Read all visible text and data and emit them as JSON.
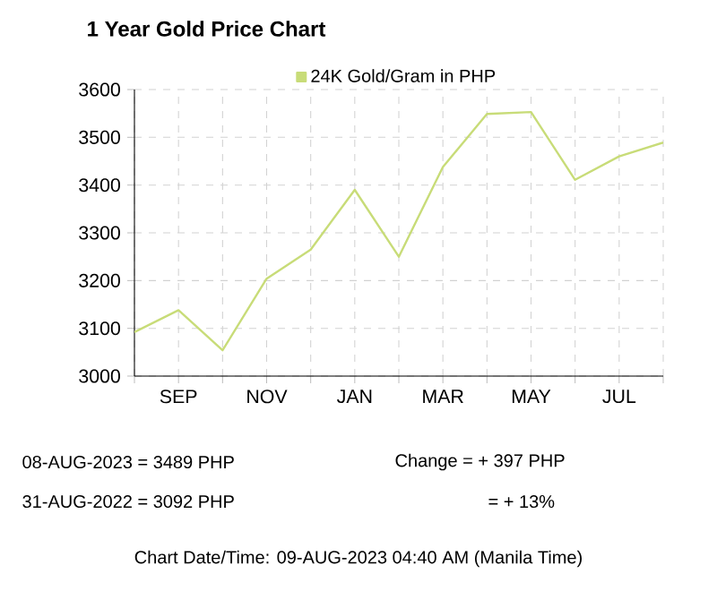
{
  "chart_data": {
    "type": "line",
    "title": "1 Year Gold Price Chart",
    "categories": [
      null,
      "SEP",
      null,
      "NOV",
      null,
      "JAN",
      null,
      "MAR",
      null,
      "MAY",
      null,
      "JUL",
      null
    ],
    "series": [
      {
        "name": "24K Gold/Gram  in PHP",
        "color": "#c8dc78",
        "values": [
          3092,
          3138,
          3054,
          3204,
          3265,
          3390,
          3250,
          3438,
          3549,
          3553,
          3411,
          3460,
          3489
        ]
      }
    ],
    "ylim": [
      3000,
      3600
    ],
    "yticks": [
      3000,
      3100,
      3200,
      3300,
      3400,
      3500,
      3600
    ],
    "grid": true,
    "legend": "top",
    "marker": "none",
    "annotations": [
      "08-AUG-2023 = 3489 PHP",
      "31-AUG-2022 = 3092 PHP",
      "Change   = + 397 PHP",
      "= + 13%",
      "Chart Date/Time: 09-AUG-2023 04:40 AM (Manila Time)"
    ]
  }
}
